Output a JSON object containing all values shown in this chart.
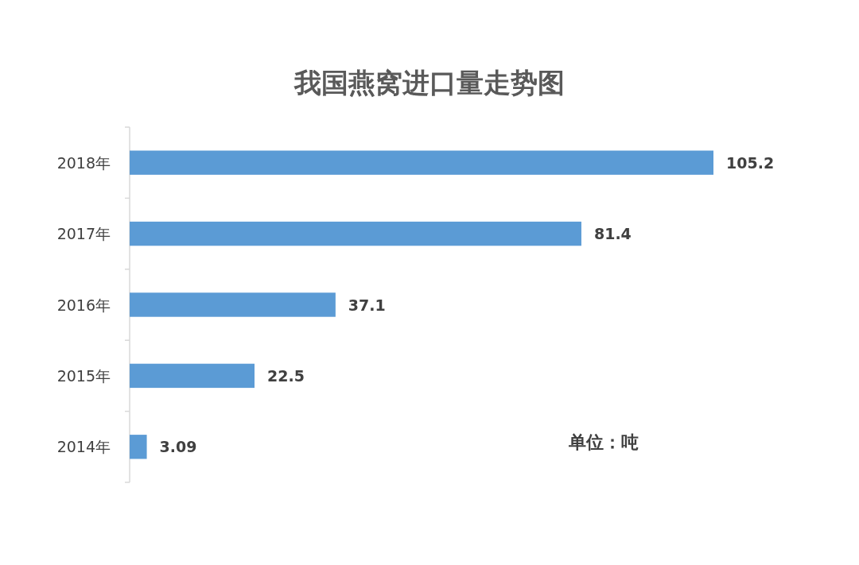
{
  "chart_data": {
    "type": "bar",
    "orientation": "horizontal",
    "title": "我国燕窝进口量走势图",
    "categories": [
      "2018年",
      "2017年",
      "2016年",
      "2015年",
      "2014年"
    ],
    "values": [
      105.2,
      81.4,
      37.1,
      22.5,
      3.09
    ],
    "color": "#5b9bd5",
    "data_labels": true,
    "annotations": [
      "单位：吨"
    ]
  }
}
